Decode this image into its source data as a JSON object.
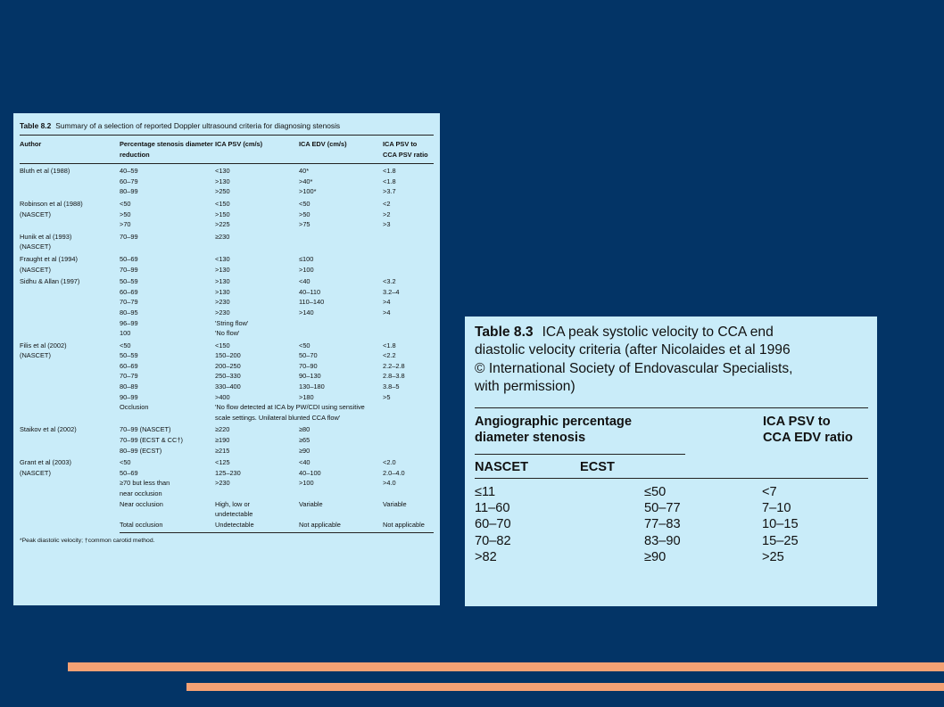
{
  "table82": {
    "label": "Table 8.2",
    "title": "Summary of a selection of reported Doppler ultrasound criteria for diagnosing stenosis",
    "headers": [
      "Author",
      "Percentage stenosis diameter reduction",
      "ICA PSV (cm/s)",
      "ICA EDV (cm/s)",
      "ICA PSV to CCA PSV ratio"
    ],
    "groups": [
      {
        "author": [
          "Bluth et al (1988)"
        ],
        "rows": [
          [
            "40–59",
            "<130",
            "40*",
            "<1.8"
          ],
          [
            "60–79",
            ">130",
            ">40*",
            "<1.8"
          ],
          [
            "80–99",
            ">250",
            ">100*",
            ">3.7"
          ]
        ]
      },
      {
        "author": [
          "Robinson et al (1988)",
          "(NASCET)"
        ],
        "rows": [
          [
            "<50",
            "<150",
            "<50",
            "<2"
          ],
          [
            ">50",
            ">150",
            ">50",
            ">2"
          ],
          [
            ">70",
            ">225",
            ">75",
            ">3"
          ]
        ]
      },
      {
        "author": [
          "Hunik et al (1993)",
          "(NASCET)"
        ],
        "rows": [
          [
            "70–99",
            "≥230",
            "",
            ""
          ]
        ]
      },
      {
        "author": [
          "Fraught et al (1994)",
          "(NASCET)"
        ],
        "rows": [
          [
            "50–69",
            "<130",
            "≤100",
            ""
          ],
          [
            "70–99",
            ">130",
            ">100",
            ""
          ]
        ]
      },
      {
        "author": [
          "Sidhu & Allan (1997)"
        ],
        "rows": [
          [
            "50–59",
            ">130",
            "<40",
            "<3.2"
          ],
          [
            "60–69",
            ">130",
            "40–110",
            "3.2–4"
          ],
          [
            "70–79",
            ">230",
            "110–140",
            ">4"
          ],
          [
            "80–95",
            ">230",
            ">140",
            ">4"
          ],
          [
            "96–99",
            "'String flow'",
            "",
            ""
          ],
          [
            "100",
            "'No flow'",
            "",
            ""
          ]
        ]
      },
      {
        "author": [
          "Filis et al (2002)",
          "(NASCET)"
        ],
        "rows": [
          [
            "<50",
            "<150",
            "<50",
            "<1.8"
          ],
          [
            "50–59",
            "150–200",
            "50–70",
            "<2.2"
          ],
          [
            "60–69",
            "200–250",
            "70–90",
            "2.2–2.8"
          ],
          [
            "70–79",
            "250–330",
            "90–130",
            "2.8–3.8"
          ],
          [
            "80–89",
            "330–400",
            "130–180",
            "3.8–5"
          ],
          [
            "90–99",
            ">400",
            ">180",
            ">5"
          ]
        ],
        "span_row": {
          "pct": "Occlusion",
          "text": [
            "'No flow detected at ICA by PW/CDI using sensitive",
            "scale settings. Unilateral blunted CCA flow'"
          ]
        }
      },
      {
        "author": [
          "Staikov et al (2002)"
        ],
        "rows": [
          [
            "70–99 (NASCET)",
            "≥220",
            "≥80",
            ""
          ],
          [
            "70–99 (ECST & CC†)",
            "≥190",
            "≥65",
            ""
          ],
          [
            "80–99 (ECST)",
            "≥215",
            "≥90",
            ""
          ]
        ]
      },
      {
        "author": [
          "Grant et al (2003)",
          "(NASCET)"
        ],
        "rows": [
          [
            "<50",
            "<125",
            "<40",
            "<2.0"
          ],
          [
            "50–69",
            "125–230",
            "40–100",
            "2.0–4.0"
          ],
          [
            "≥70 but less than\nnear occlusion",
            ">230",
            ">100",
            ">4.0"
          ],
          [
            "Near occlusion",
            "High, low or\nundetectable",
            "Variable",
            "Variable"
          ],
          [
            "Total occlusion",
            "Undetectable",
            "Not applicable",
            "Not applicable"
          ]
        ]
      }
    ],
    "footnote": "*Peak diastolic velocity; †common carotid method."
  },
  "table83": {
    "label": "Table 8.3",
    "title_lines": [
      "ICA peak systolic velocity to CCA end",
      "diastolic velocity criteria (after Nicolaides et al 1996",
      "© International Society of Endovascular Specialists,",
      "with permission)"
    ],
    "header_left": [
      "Angiographic percentage",
      "diameter stenosis"
    ],
    "header_right": [
      "ICA PSV to",
      "CCA EDV ratio"
    ],
    "sub_headers": [
      "NASCET",
      "ECST"
    ],
    "rows": [
      [
        "≤11",
        "≤50",
        "<7"
      ],
      [
        "11–60",
        "50–77",
        "7–10"
      ],
      [
        "60–70",
        "77–83",
        "10–15"
      ],
      [
        "70–82",
        "83–90",
        "15–25"
      ],
      [
        ">82",
        "≥90",
        ">25"
      ]
    ]
  },
  "colors": {
    "background": "#033466",
    "panel": "#c9ecf9",
    "stripe": "#f4a174"
  }
}
